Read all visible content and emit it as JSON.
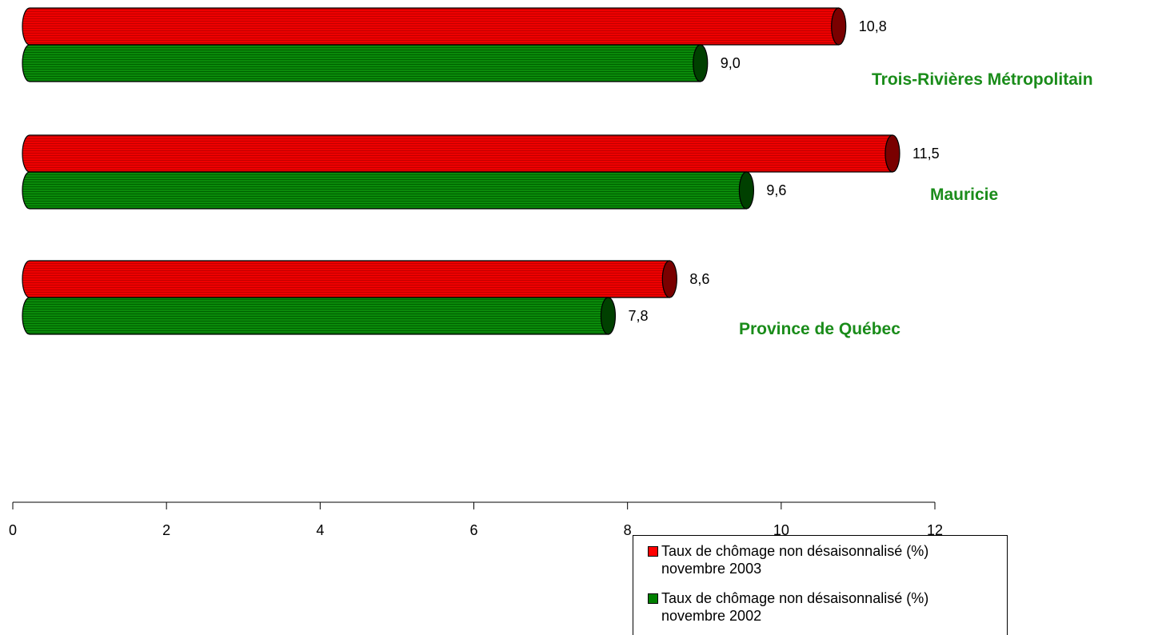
{
  "chart_data": {
    "type": "bar",
    "orientation": "horizontal",
    "style": "3d-cylinder",
    "categories": [
      "Trois-Rivières Métropolitain",
      "Mauricie",
      "Province de Québec"
    ],
    "series": [
      {
        "name": "Taux de chômage non désaisonnalisé  (%)\nnovembre 2003",
        "color": "#ff0000",
        "values": [
          10.8,
          11.5,
          8.6
        ],
        "labels": [
          "10,8",
          "11,5",
          "8,6"
        ]
      },
      {
        "name": "Taux de chômage non désaisonnalisé  (%)\nnovembre 2002",
        "color": "#008000",
        "values": [
          9.0,
          9.6,
          7.8
        ],
        "labels": [
          "9,0",
          "9,6",
          "7,8"
        ]
      }
    ],
    "xlim": [
      0,
      12
    ],
    "xticks": [
      "0",
      "2",
      "4",
      "6",
      "8",
      "10",
      "12"
    ],
    "category_label_color": "#1a8c1a",
    "legend_position": "bottom-right",
    "grid": false
  }
}
